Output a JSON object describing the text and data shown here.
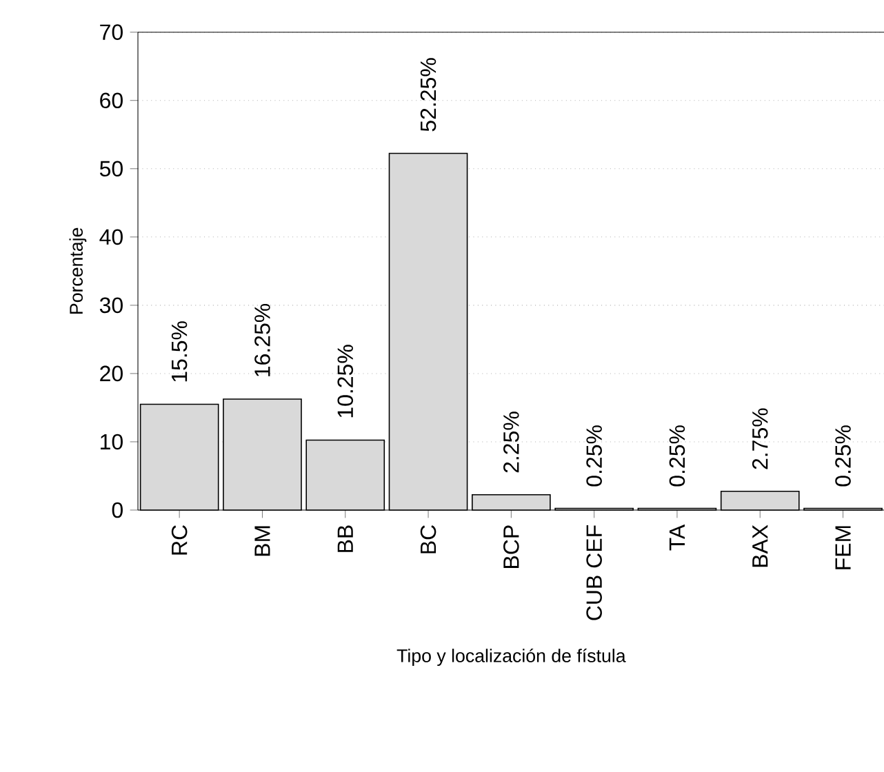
{
  "chart_data": {
    "type": "bar",
    "xlabel": "Tipo y localización de fístula",
    "ylabel": "Porcentaje",
    "categories": [
      "RC",
      "BM",
      "BB",
      "BC",
      "BCP",
      "CUB CEF",
      "TA",
      "BAX",
      "FEM"
    ],
    "values": [
      15.5,
      16.25,
      10.25,
      52.25,
      2.25,
      0.25,
      0.25,
      2.75,
      0.25
    ],
    "value_labels": [
      "15.5%",
      "16.25%",
      "10.25%",
      "52.25%",
      "2.25%",
      "0.25%",
      "0.25%",
      "2.75%",
      "0.25%"
    ],
    "color": "#d9d9d9",
    "ylim": [
      0,
      70
    ],
    "yticks": [
      0,
      10,
      20,
      30,
      40,
      50,
      60,
      70
    ],
    "grid": "y"
  }
}
